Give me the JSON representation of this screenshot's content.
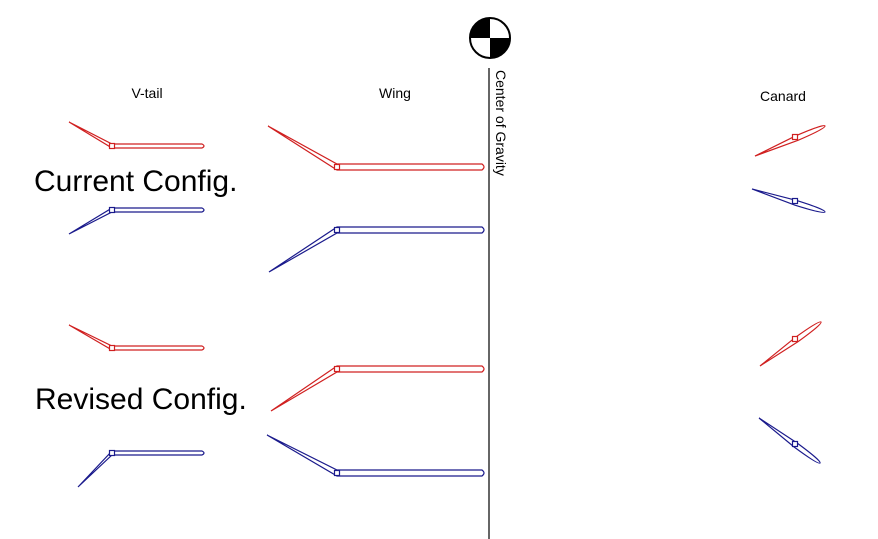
{
  "labels": {
    "vtail": "V-tail",
    "wing": "Wing",
    "canard": "Canard",
    "center_of_gravity": "Center of Gravity"
  },
  "configs": [
    "Current Config.",
    "Revised Config."
  ]
}
